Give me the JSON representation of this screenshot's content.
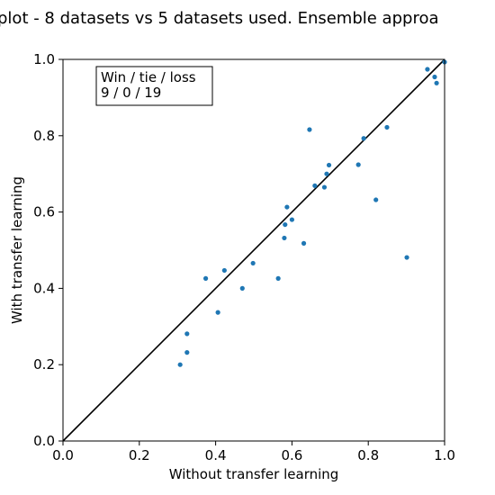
{
  "chart_data": {
    "type": "scatter",
    "title": "plot - 8 datasets vs 5 datasets used. Ensemble  approa",
    "xlabel": "Without transfer learning",
    "ylabel": "With transfer learning",
    "xlim": [
      0.0,
      1.0
    ],
    "ylim": [
      0.0,
      1.0
    ],
    "xticks": [
      "0.0",
      "0.2",
      "0.4",
      "0.6",
      "0.8",
      "1.0"
    ],
    "yticks": [
      "0.0",
      "0.2",
      "0.4",
      "0.6",
      "0.8",
      "1.0"
    ],
    "grid": false,
    "reference_line": "y = x",
    "annotation": {
      "lines": [
        "Win / tie / loss",
        "9 / 0 / 19"
      ],
      "placement": "top-left"
    },
    "point_color": "#1f77b4",
    "line_color": "#000000",
    "points": [
      {
        "x": 0.307,
        "y": 0.2
      },
      {
        "x": 0.325,
        "y": 0.232
      },
      {
        "x": 0.325,
        "y": 0.281
      },
      {
        "x": 0.374,
        "y": 0.426
      },
      {
        "x": 0.406,
        "y": 0.337
      },
      {
        "x": 0.423,
        "y": 0.447
      },
      {
        "x": 0.47,
        "y": 0.4
      },
      {
        "x": 0.498,
        "y": 0.466
      },
      {
        "x": 0.564,
        "y": 0.426
      },
      {
        "x": 0.58,
        "y": 0.532
      },
      {
        "x": 0.582,
        "y": 0.567
      },
      {
        "x": 0.587,
        "y": 0.613
      },
      {
        "x": 0.6,
        "y": 0.58
      },
      {
        "x": 0.631,
        "y": 0.518
      },
      {
        "x": 0.646,
        "y": 0.816
      },
      {
        "x": 0.66,
        "y": 0.669
      },
      {
        "x": 0.685,
        "y": 0.665
      },
      {
        "x": 0.691,
        "y": 0.7
      },
      {
        "x": 0.697,
        "y": 0.723
      },
      {
        "x": 0.774,
        "y": 0.724
      },
      {
        "x": 0.788,
        "y": 0.793
      },
      {
        "x": 0.82,
        "y": 0.632
      },
      {
        "x": 0.849,
        "y": 0.822
      },
      {
        "x": 0.901,
        "y": 0.481
      },
      {
        "x": 0.955,
        "y": 0.974
      },
      {
        "x": 0.974,
        "y": 0.954
      },
      {
        "x": 0.979,
        "y": 0.938
      },
      {
        "x": 1.0,
        "y": 0.993
      }
    ]
  }
}
